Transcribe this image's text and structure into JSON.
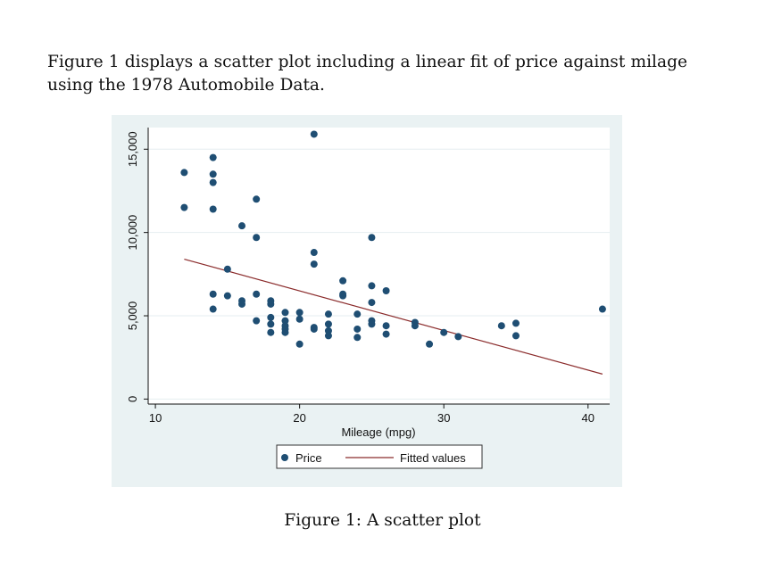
{
  "paragraph": "Figure 1 displays a scatter plot including a linear fit of price against milage using the 1978 Automobile Data.",
  "caption": "Figure 1: A scatter plot",
  "chart_data": {
    "type": "scatter",
    "xlabel": "Mileage (mpg)",
    "ylabel": "",
    "xlim": [
      9.5,
      41.5
    ],
    "ylim": [
      -300,
      16300
    ],
    "xticks": [
      10,
      20,
      30,
      40
    ],
    "yticks": [
      0,
      5000,
      10000,
      15000
    ],
    "xtick_labels": [
      "10",
      "20",
      "30",
      "40"
    ],
    "ytick_labels": [
      "0",
      "5,000",
      "10,000",
      "15,000"
    ],
    "grid": "horizontal",
    "legend": "bottom",
    "colors": {
      "points": "#1f4e73",
      "fit": "#8b2c2c",
      "background": "#eaf2f3"
    },
    "series": [
      {
        "name": "Price",
        "kind": "scatter",
        "points": [
          [
            12,
            11500
          ],
          [
            12,
            13600
          ],
          [
            14,
            14500
          ],
          [
            14,
            13500
          ],
          [
            14,
            13000
          ],
          [
            14,
            11400
          ],
          [
            14,
            6300
          ],
          [
            14,
            5400
          ],
          [
            15,
            7800
          ],
          [
            15,
            6200
          ],
          [
            16,
            10400
          ],
          [
            16,
            5900
          ],
          [
            16,
            5700
          ],
          [
            17,
            12000
          ],
          [
            17,
            9700
          ],
          [
            17,
            6300
          ],
          [
            17,
            4700
          ],
          [
            18,
            5900
          ],
          [
            18,
            5700
          ],
          [
            18,
            4900
          ],
          [
            18,
            4500
          ],
          [
            18,
            4000
          ],
          [
            19,
            5200
          ],
          [
            19,
            4700
          ],
          [
            19,
            4400
          ],
          [
            19,
            4200
          ],
          [
            19,
            4000
          ],
          [
            20,
            5200
          ],
          [
            20,
            4800
          ],
          [
            20,
            3300
          ],
          [
            21,
            15900
          ],
          [
            21,
            8800
          ],
          [
            21,
            8100
          ],
          [
            21,
            4300
          ],
          [
            21,
            4200
          ],
          [
            22,
            5100
          ],
          [
            22,
            4500
          ],
          [
            22,
            4100
          ],
          [
            22,
            3800
          ],
          [
            23,
            7100
          ],
          [
            23,
            6300
          ],
          [
            23,
            6200
          ],
          [
            24,
            5100
          ],
          [
            24,
            4200
          ],
          [
            24,
            3700
          ],
          [
            25,
            9700
          ],
          [
            25,
            6800
          ],
          [
            25,
            5800
          ],
          [
            25,
            4700
          ],
          [
            25,
            4500
          ],
          [
            26,
            6500
          ],
          [
            26,
            4400
          ],
          [
            26,
            3900
          ],
          [
            28,
            4600
          ],
          [
            28,
            4400
          ],
          [
            29,
            3300
          ],
          [
            30,
            4000
          ],
          [
            31,
            3750
          ],
          [
            34,
            4400
          ],
          [
            35,
            4550
          ],
          [
            35,
            3800
          ],
          [
            41,
            5400
          ]
        ]
      },
      {
        "name": "Fitted values",
        "kind": "line",
        "points": [
          [
            12,
            8400
          ],
          [
            41,
            1500
          ]
        ]
      }
    ]
  }
}
